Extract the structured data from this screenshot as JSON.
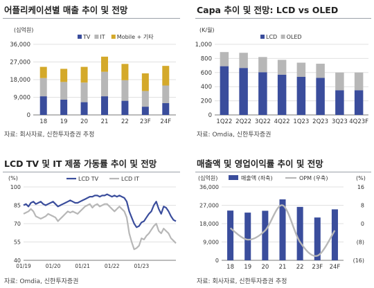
{
  "panels": [
    {
      "title": "어플리케이션별 매출 추이 및 전망",
      "unit": "(십억원)",
      "source": "자료: 회사자료, 신한투자증권 추정"
    },
    {
      "title": "Capa 추이 및 전망: LCD vs OLED",
      "unit": "(K/월)",
      "source": "자료: Omdia, 신한투자증권"
    },
    {
      "title": "LCD TV 및 IT 제품 가동률 추이 및 전망",
      "unit": "(%)",
      "source": "자료: Omdia, 신한투자증권"
    },
    {
      "title": "매출액 및 영업이익률 추이 및 전망",
      "unit_left": "(십억원)",
      "unit_right": "(%)",
      "source": "자료: 회사자료, 신한투자증권 추정"
    }
  ],
  "chart_data": [
    {
      "type": "bar",
      "stacked": true,
      "categories": [
        "18",
        "19",
        "20",
        "21",
        "22",
        "23F",
        "24F"
      ],
      "series": [
        {
          "name": "TV",
          "color": "#3a4d9c",
          "values": [
            9500,
            7800,
            6500,
            9500,
            7200,
            4200,
            6000
          ]
        },
        {
          "name": "IT",
          "color": "#b7b7b7",
          "values": [
            9300,
            9000,
            10000,
            12500,
            10500,
            8000,
            9000
          ]
        },
        {
          "name": "Mobile + 기타",
          "color": "#d4a92a",
          "values": [
            5700,
            6700,
            8000,
            7700,
            8300,
            9000,
            10000
          ]
        }
      ],
      "yticks": [
        "0",
        "9,000",
        "18,000",
        "27,000",
        "36,000"
      ],
      "ylim": [
        0,
        36000
      ],
      "grid": true,
      "legend": "top-left"
    },
    {
      "type": "bar",
      "stacked": true,
      "categories": [
        "1Q22",
        "2Q22",
        "3Q22",
        "4Q22",
        "1Q23",
        "2Q23",
        "3Q23",
        "4Q23F"
      ],
      "series": [
        {
          "name": "LCD",
          "color": "#3a4d9c",
          "values": [
            690,
            665,
            605,
            570,
            540,
            525,
            350,
            350
          ]
        },
        {
          "name": "OLED",
          "color": "#b7b7b7",
          "values": [
            200,
            215,
            215,
            210,
            200,
            200,
            250,
            250
          ]
        }
      ],
      "yticks": [
        "0",
        "200",
        "400",
        "600",
        "800",
        "1,000"
      ],
      "ylim": [
        0,
        1000
      ],
      "grid": true,
      "legend": "top-left"
    },
    {
      "type": "line",
      "xticks": [
        "01/19",
        "01/20",
        "01/21",
        "01/22",
        "01/23"
      ],
      "x_start": "01/19",
      "yticks": [
        "40",
        "55",
        "70",
        "85",
        "100"
      ],
      "ylim": [
        40,
        100
      ],
      "grid": true,
      "legend": "top-center",
      "series": [
        {
          "name": "LCD TV",
          "color": "#3a4d9c",
          "values": [
            85,
            86,
            84,
            87,
            88,
            86,
            87,
            88,
            86,
            85,
            86,
            87,
            88,
            86,
            84,
            85,
            86,
            87,
            88,
            89,
            88,
            87,
            87,
            88,
            89,
            90,
            91,
            92,
            92,
            93,
            93,
            92,
            93,
            93,
            94,
            93,
            92,
            93,
            92,
            93,
            92,
            91,
            88,
            80,
            75,
            70,
            67,
            68,
            71,
            72,
            75,
            78,
            80,
            85,
            88,
            82,
            78,
            84,
            83,
            80,
            76,
            73,
            72
          ]
        },
        {
          "name": "LCD IT",
          "color": "#b7b7b7",
          "values": [
            78,
            79,
            80,
            82,
            80,
            76,
            75,
            74,
            75,
            76,
            78,
            77,
            76,
            75,
            72,
            74,
            76,
            78,
            80,
            79,
            80,
            79,
            78,
            80,
            82,
            84,
            85,
            86,
            83,
            85,
            86,
            84,
            85,
            86,
            86,
            84,
            82,
            80,
            82,
            84,
            82,
            80,
            75,
            62,
            55,
            49,
            50,
            52,
            58,
            57,
            60,
            62,
            65,
            68,
            70,
            64,
            62,
            66,
            64,
            62,
            58,
            56,
            54
          ]
        }
      ]
    },
    {
      "type": "bar+line",
      "categories": [
        "18",
        "19",
        "20",
        "21",
        "22",
        "23F",
        "24F"
      ],
      "series": [
        {
          "name": "매출액 (좌축)",
          "color": "#3a4d9c",
          "axis": "left",
          "values": [
            24400,
            23400,
            24300,
            29900,
            26200,
            21000,
            25000
          ]
        },
        {
          "name": "OPM (우축)",
          "color": "#b7b7b7",
          "axis": "right",
          "values": [
            -2.0,
            -7.0,
            -3.0,
            8.0,
            -8.0,
            -14.0,
            -3.0
          ]
        }
      ],
      "yticks_left": [
        "0",
        "9,000",
        "18,000",
        "27,000",
        "36,000"
      ],
      "ylim_left": [
        0,
        36000
      ],
      "yticks_right": [
        "(16)",
        "(8)",
        "0",
        "8",
        "16"
      ],
      "ylim_right": [
        -16,
        16
      ],
      "grid": true,
      "legend": "top-center"
    }
  ]
}
